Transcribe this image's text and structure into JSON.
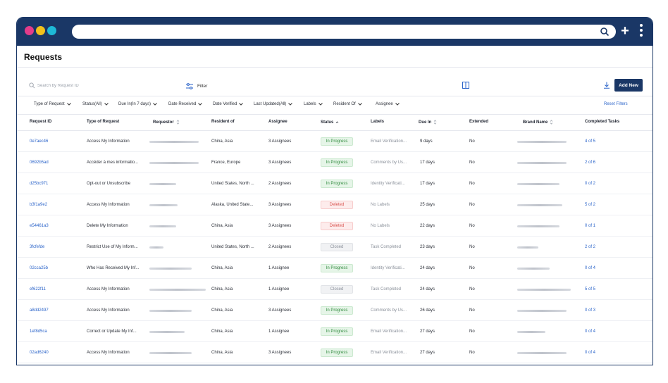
{
  "browser": {
    "dots": [
      "#e33c8a",
      "#f2c11b",
      "#1eb9d6"
    ],
    "bar_color": "#1a3766"
  },
  "page": {
    "title": "Requests"
  },
  "toolbar": {
    "search_placeholder": "Search by Request ID",
    "filter_label": "Filter",
    "add_new_label": "Add New"
  },
  "filters": [
    "Type of Request",
    "Status(All)",
    "Due In(In 7 days)",
    "Date Received",
    "Date Verified",
    "Last Updated(All)",
    "Labels",
    "Resident Of",
    "Assignee"
  ],
  "reset_filters": "Reset Filters",
  "columns": [
    "Request ID",
    "Type of Request",
    "Requestor",
    "Resident of",
    "Assignee",
    "Status",
    "Labels",
    "Due In",
    "Extended",
    "Brand Name",
    "Completed Tasks"
  ],
  "rows": [
    {
      "id": "0e7aec46",
      "type": "Access My Information",
      "resident": "China, Asia",
      "assignee": "3 Assignees",
      "status": "In Progress",
      "status_kind": "in-progress",
      "labels": "Email Verification...",
      "due": "9 days",
      "extended": "No",
      "completed": "4 of 5"
    },
    {
      "id": "0692b5ad",
      "type": "Accéder à mes informatio...",
      "resident": "France, Europe",
      "assignee": "3 Assignees",
      "status": "In Progress",
      "status_kind": "in-progress",
      "labels": "Comments by Us...",
      "due": "17 days",
      "extended": "No",
      "completed": "2 of 6"
    },
    {
      "id": "d25bc971",
      "type": "Opt-out or Unsubscribe",
      "resident": "United States, North ...",
      "assignee": "2 Assignees",
      "status": "In Progress",
      "status_kind": "in-progress",
      "labels": "Identity Verificati...",
      "due": "17 days",
      "extended": "No",
      "completed": "0 of 2"
    },
    {
      "id": "b3f1a9e2",
      "type": "Access My Information",
      "resident": "Alaska, United State...",
      "assignee": "3 Assignees",
      "status": "Deleted",
      "status_kind": "deleted",
      "labels": "No Labels",
      "due": "25 days",
      "extended": "No",
      "completed": "5 of 2"
    },
    {
      "id": "e54461a3",
      "type": "Delete My Information",
      "resident": "China, Asia",
      "assignee": "3 Assignees",
      "status": "Deleted",
      "status_kind": "deleted",
      "labels": "No Labels",
      "due": "22 days",
      "extended": "No",
      "completed": "0 of 1"
    },
    {
      "id": "3fcfefde",
      "type": "Restrict Use of My Inform...",
      "resident": "United States, North ...",
      "assignee": "2 Assignees",
      "status": "Closed",
      "status_kind": "closed",
      "labels": "Task Completed",
      "due": "23 days",
      "extended": "No",
      "completed": "2 of 2"
    },
    {
      "id": "02cca25b",
      "type": "Who Has Received My Inf...",
      "resident": "China, Asia",
      "assignee": "1 Assignee",
      "status": "In Progress",
      "status_kind": "in-progress",
      "labels": "Identity Verificati...",
      "due": "24 days",
      "extended": "No",
      "completed": "0 of 4"
    },
    {
      "id": "ef622f11",
      "type": "Access My Information",
      "resident": "China, Asia",
      "assignee": "1 Assignee",
      "status": "Closed",
      "status_kind": "closed",
      "labels": "Task Completed",
      "due": "24 days",
      "extended": "No",
      "completed": "5 of 5"
    },
    {
      "id": "a8dd2497",
      "type": "Access My Information",
      "resident": "China, Asia",
      "assignee": "3 Assignees",
      "status": "In Progress",
      "status_kind": "in-progress",
      "labels": "Comments by Us...",
      "due": "26 days",
      "extended": "No",
      "completed": "0 of 3"
    },
    {
      "id": "1ef8d5ca",
      "type": "Correct or Update My Inf...",
      "resident": "China, Asia",
      "assignee": "1 Assignee",
      "status": "In Progress",
      "status_kind": "in-progress",
      "labels": "Email Verification...",
      "due": "27 days",
      "extended": "No",
      "completed": "0 of 4"
    },
    {
      "id": "02ad6240",
      "type": "Access My Information",
      "resident": "China, Asia",
      "assignee": "3 Assignees",
      "status": "In Progress",
      "status_kind": "in-progress",
      "labels": "Email Verification...",
      "due": "27 days",
      "extended": "No",
      "completed": "0 of 4"
    }
  ]
}
